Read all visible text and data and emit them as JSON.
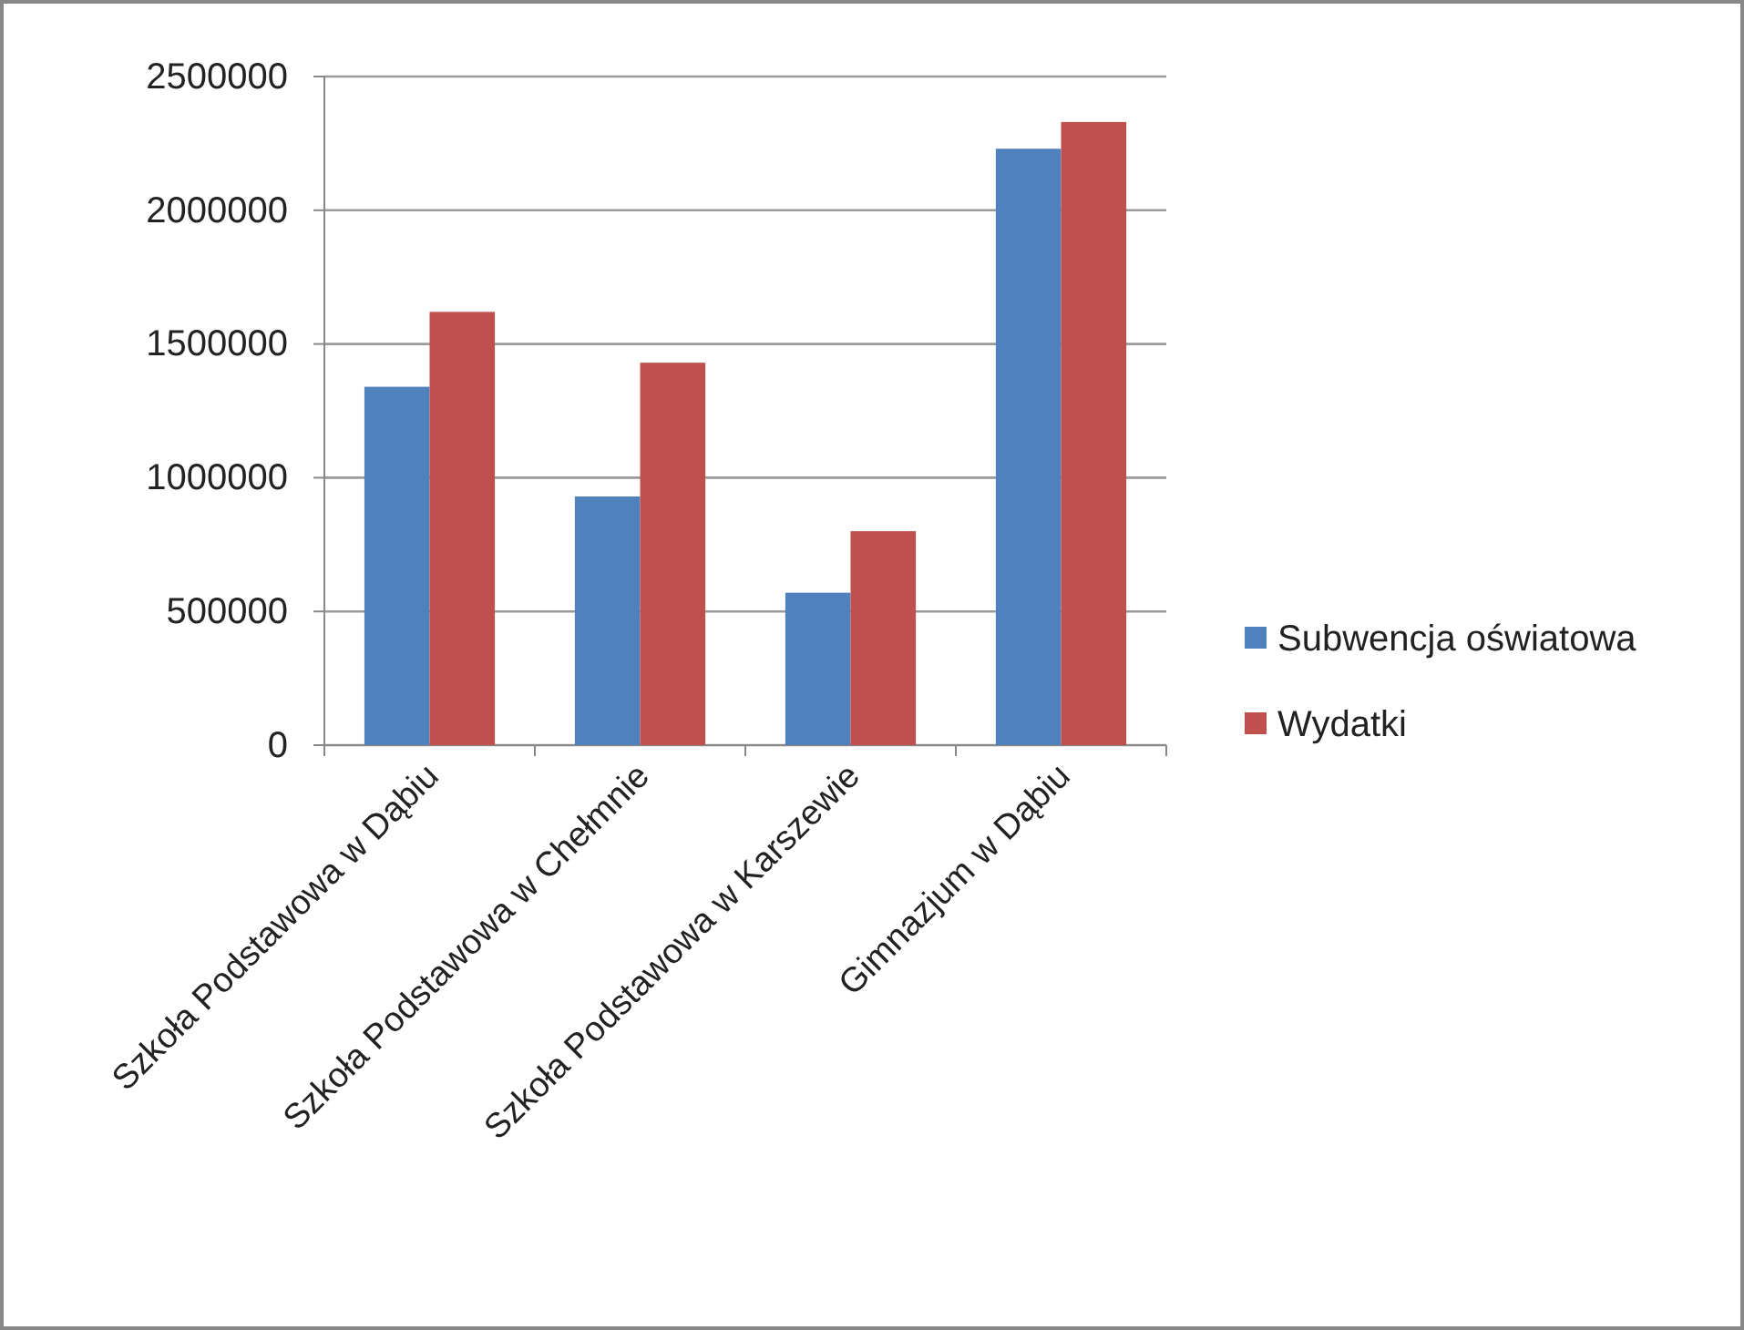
{
  "chart_data": {
    "type": "bar",
    "categories": [
      "Szkoła Podstawowa w Dąbiu",
      "Szkoła Podstawowa w Chełmnie",
      "Szkoła Podstawowa w Karszewie",
      "Gimnazjum w Dąbiu"
    ],
    "series": [
      {
        "name": "Subwencja oświatowa",
        "color": "#4f81bd",
        "values": [
          1340000,
          930000,
          570000,
          2230000
        ]
      },
      {
        "name": "Wydatki",
        "color": "#c0504d",
        "values": [
          1620000,
          1430000,
          800000,
          2330000
        ]
      }
    ],
    "ylim": [
      0,
      2500000
    ],
    "yticks": [
      0,
      500000,
      1000000,
      1500000,
      2000000,
      2500000
    ],
    "grid": "y",
    "legend": "right"
  }
}
